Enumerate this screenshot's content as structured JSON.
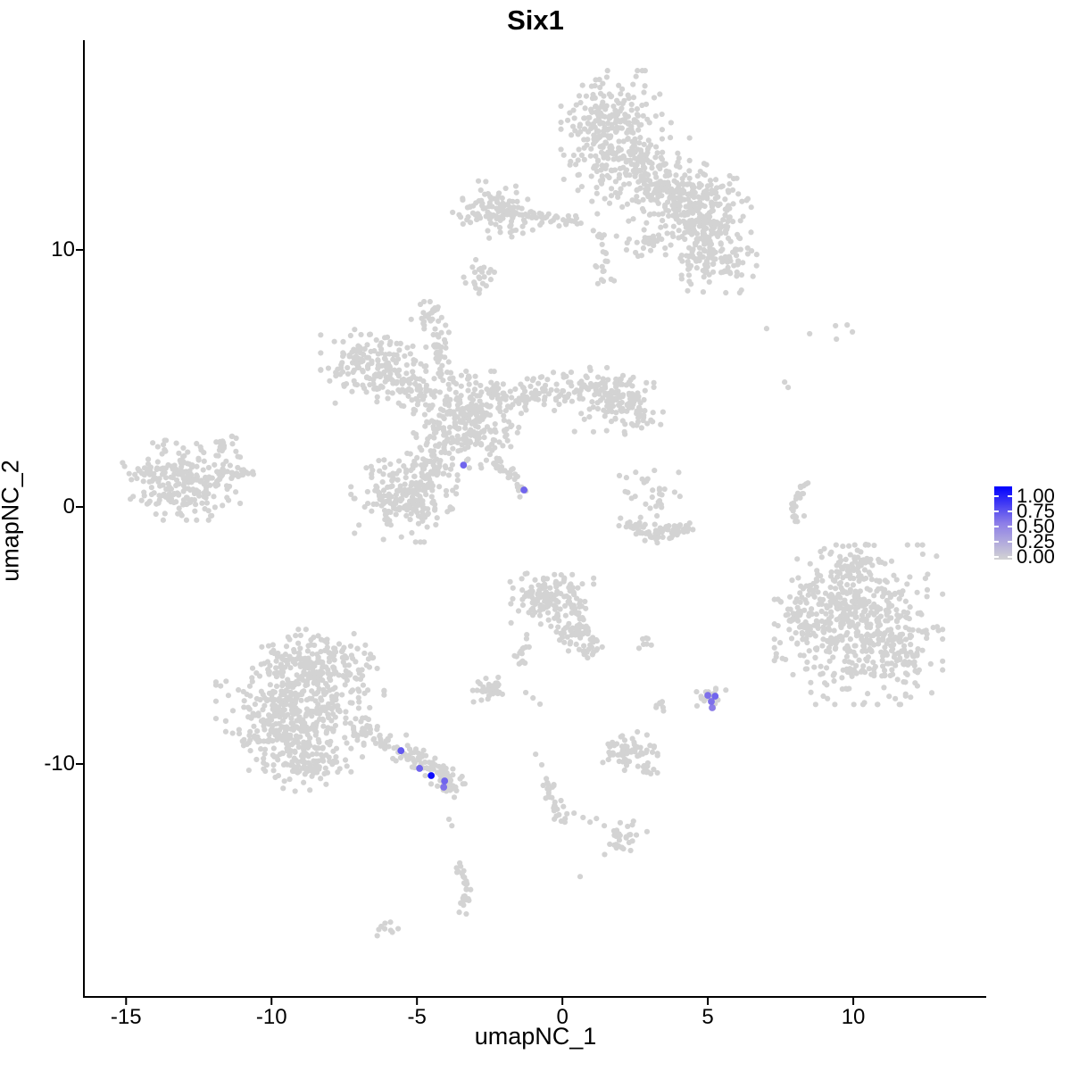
{
  "chart_data": {
    "type": "scatter",
    "title": "Six1",
    "xlabel": "umapNC_1",
    "ylabel": "umapNC_2",
    "xlim": [
      -16.42,
      14.57
    ],
    "ylim": [
      -19.06,
      18.16
    ],
    "grid": "off",
    "x_tick_labels": [
      "-15",
      "-10",
      "-5",
      "0",
      "5",
      "10"
    ],
    "x_tick_values": [
      -15,
      -10,
      -5,
      0,
      5,
      10
    ],
    "y_tick_labels": [
      "10",
      "0",
      "-10"
    ],
    "y_tick_values": [
      10,
      0,
      -10
    ],
    "point_color_low": "#D3D3D3",
    "point_color_mid": "#8C7DE8",
    "point_color_high": "#0000FF",
    "legend": {
      "labels": [
        "1.00",
        "0.75",
        "0.50",
        "0.25",
        "0.00"
      ],
      "high": "#0000FF",
      "mid": "#8C7DE8",
      "low": "#D3D3D3"
    },
    "background_clusters": [
      {
        "kind": "blob",
        "n": 230,
        "x": 1.69,
        "y": 14.86,
        "sx": 0.74,
        "sy": 0.9
      },
      {
        "kind": "blob",
        "n": 170,
        "x": 2.21,
        "y": 13.19,
        "sx": 0.92,
        "sy": 0.76
      },
      {
        "kind": "blob",
        "n": 60,
        "x": 3.53,
        "y": 12.53,
        "sx": 0.46,
        "sy": 0.49
      },
      {
        "kind": "blob",
        "n": 190,
        "x": 4.66,
        "y": 11.81,
        "sx": 0.83,
        "sy": 0.66
      },
      {
        "kind": "blob",
        "n": 130,
        "x": 5.21,
        "y": 9.72,
        "sx": 0.67,
        "sy": 0.59
      },
      {
        "kind": "blob",
        "n": 50,
        "x": 4.91,
        "y": 10.76,
        "sx": 0.43,
        "sy": 0.42
      },
      {
        "kind": "blob",
        "n": 110,
        "x": -2.27,
        "y": 11.53,
        "sx": 0.64,
        "sy": 0.49
      },
      {
        "kind": "line",
        "n": 40,
        "x1": -1.6,
        "y1": 11.35,
        "x2": 0.67,
        "y2": 11.18,
        "j": 0.13
      },
      {
        "kind": "line",
        "n": 22,
        "x1": 1.29,
        "y1": 10.87,
        "x2": 1.53,
        "y2": 8.61,
        "j": 0.16
      },
      {
        "kind": "blob",
        "n": 35,
        "x": 3.01,
        "y": 10.35,
        "sx": 0.49,
        "sy": 0.42
      },
      {
        "kind": "blob",
        "n": 24,
        "x": -2.82,
        "y": 8.89,
        "sx": 0.25,
        "sy": 0.31
      },
      {
        "kind": "blob",
        "n": 30,
        "x": -4.54,
        "y": 7.5,
        "sx": 0.28,
        "sy": 0.38
      },
      {
        "kind": "line",
        "n": 12,
        "x1": -4.23,
        "y1": 6.81,
        "x2": -4.05,
        "y2": 5.66,
        "j": 0.1
      },
      {
        "kind": "blob",
        "n": 160,
        "x": -6.5,
        "y": 5.59,
        "sx": 0.77,
        "sy": 0.66
      },
      {
        "kind": "blob",
        "n": 55,
        "x": -5.15,
        "y": 4.58,
        "sx": 0.4,
        "sy": 0.42
      },
      {
        "kind": "blob",
        "n": 270,
        "x": -3.31,
        "y": 3.4,
        "sx": 0.77,
        "sy": 0.8
      },
      {
        "kind": "line",
        "n": 110,
        "x1": -2.52,
        "y1": 4.03,
        "x2": 0.77,
        "y2": 4.69,
        "j": 0.36
      },
      {
        "kind": "blob",
        "n": 130,
        "x": 1.78,
        "y": 4.24,
        "sx": 0.58,
        "sy": 0.56
      },
      {
        "kind": "blob",
        "n": 30,
        "x": 2.73,
        "y": 3.65,
        "sx": 0.31,
        "sy": 0.35
      },
      {
        "kind": "line",
        "n": 26,
        "x1": -3.96,
        "y1": 4.72,
        "x2": -4.33,
        "y2": 6.46,
        "j": 0.16
      },
      {
        "kind": "blob",
        "n": 210,
        "x": -5.46,
        "y": 0.35,
        "sx": 0.77,
        "sy": 0.73
      },
      {
        "kind": "blob",
        "n": 60,
        "x": -4.54,
        "y": 1.74,
        "sx": 0.43,
        "sy": 0.45
      },
      {
        "kind": "line",
        "n": 32,
        "x1": -2.48,
        "y1": 1.91,
        "x2": -1.23,
        "y2": 0.59,
        "j": 0.11
      },
      {
        "kind": "blob",
        "n": 240,
        "x": -13.1,
        "y": 1.04,
        "sx": 0.86,
        "sy": 0.66
      },
      {
        "kind": "line",
        "n": 28,
        "x1": -11.96,
        "y1": 1.28,
        "x2": -10.61,
        "y2": 1.39,
        "j": 0.16
      },
      {
        "kind": "line",
        "n": 13,
        "x1": -11.9,
        "y1": 2.26,
        "x2": -11.29,
        "y2": 2.74,
        "j": 0.1
      },
      {
        "kind": "line",
        "n": 40,
        "x1": 2.21,
        "y1": -0.66,
        "x2": 3.37,
        "y2": -1.15,
        "j": 0.16
      },
      {
        "kind": "line",
        "n": 35,
        "x1": 3.37,
        "y1": -1.15,
        "x2": 4.42,
        "y2": -0.87,
        "j": 0.16
      },
      {
        "kind": "blob",
        "n": 30,
        "x": 3.1,
        "y": 0.42,
        "sx": 0.4,
        "sy": 0.45
      },
      {
        "kind": "points",
        "pts": [
          [
            2.52,
            1.35
          ],
          [
            2.82,
            0.97
          ],
          [
            1.96,
            1.22
          ]
        ]
      },
      {
        "kind": "line",
        "n": 14,
        "x1": 8.4,
        "y1": 1.01,
        "x2": 7.94,
        "y2": 0.1,
        "j": 0.08
      },
      {
        "kind": "line",
        "n": 10,
        "x1": 7.94,
        "y1": 0.1,
        "x2": 8.01,
        "y2": -0.59,
        "j": 0.08
      },
      {
        "kind": "points",
        "pts": [
          [
            8.25,
            0.52
          ],
          [
            8.31,
            -0.35
          ]
        ]
      },
      {
        "kind": "points",
        "pts": [
          [
            7.02,
            6.94
          ],
          [
            8.5,
            6.74
          ],
          [
            9.39,
            7.05
          ],
          [
            9.79,
            7.08
          ],
          [
            9.97,
            6.81
          ],
          [
            9.42,
            6.53
          ],
          [
            7.64,
            4.86
          ],
          [
            7.76,
            4.65
          ]
        ]
      },
      {
        "kind": "blob",
        "n": 420,
        "x": 10.18,
        "y": -4.58,
        "sx": 1.23,
        "sy": 1.32
      },
      {
        "kind": "blob",
        "n": 90,
        "x": 9.36,
        "y": -3.19,
        "sx": 0.74,
        "sy": 0.69
      },
      {
        "kind": "blob",
        "n": 90,
        "x": 11.35,
        "y": -5.63,
        "sx": 0.74,
        "sy": 0.76
      },
      {
        "kind": "blob",
        "n": 35,
        "x": 8.07,
        "y": -4.65,
        "sx": 0.28,
        "sy": 0.45
      },
      {
        "kind": "blob",
        "n": 30,
        "x": 10.06,
        "y": -2.15,
        "sx": 0.37,
        "sy": 0.35
      },
      {
        "kind": "blob",
        "n": 190,
        "x": -8.59,
        "y": -6.15,
        "sx": 1.04,
        "sy": 0.59
      },
      {
        "kind": "blob",
        "n": 250,
        "x": -9.02,
        "y": -7.57,
        "sx": 1.23,
        "sy": 0.69
      },
      {
        "kind": "blob",
        "n": 190,
        "x": -9.2,
        "y": -8.89,
        "sx": 1.01,
        "sy": 0.59
      },
      {
        "kind": "blob",
        "n": 80,
        "x": -8.77,
        "y": -10.07,
        "sx": 0.64,
        "sy": 0.42
      },
      {
        "kind": "line",
        "n": 45,
        "x1": -7.12,
        "y1": -8.4,
        "x2": -5.46,
        "y2": -9.55,
        "j": 0.22
      },
      {
        "kind": "line",
        "n": 55,
        "x1": -5.46,
        "y1": -9.55,
        "x2": -3.93,
        "y2": -10.56,
        "j": 0.19
      },
      {
        "kind": "blob",
        "n": 30,
        "x": -3.9,
        "y": -10.73,
        "sx": 0.25,
        "sy": 0.24
      },
      {
        "kind": "points",
        "pts": [
          [
            -3.9,
            -12.15
          ],
          [
            -3.8,
            -12.4
          ]
        ]
      },
      {
        "kind": "blob",
        "n": 25,
        "x": 5.06,
        "y": -7.33,
        "sx": 0.25,
        "sy": 0.21
      },
      {
        "kind": "blob",
        "n": 150,
        "x": -0.43,
        "y": -3.54,
        "sx": 0.64,
        "sy": 0.59
      },
      {
        "kind": "blob",
        "n": 50,
        "x": 0.52,
        "y": -4.83,
        "sx": 0.4,
        "sy": 0.38
      },
      {
        "kind": "blob",
        "n": 16,
        "x": 0.98,
        "y": -5.59,
        "sx": 0.21,
        "sy": 0.24
      },
      {
        "kind": "line",
        "n": 16,
        "x1": -1.17,
        "y1": -5.07,
        "x2": -1.6,
        "y2": -6.22,
        "j": 0.1
      },
      {
        "kind": "blob",
        "n": 40,
        "x": -2.42,
        "y": -7.05,
        "sx": 0.34,
        "sy": 0.24
      },
      {
        "kind": "points",
        "pts": [
          [
            -1.26,
            -7.22
          ],
          [
            -1.01,
            -7.43
          ],
          [
            -0.77,
            -7.67
          ]
        ]
      },
      {
        "kind": "blob",
        "n": 7,
        "x": 2.82,
        "y": -5.24,
        "sx": 0.15,
        "sy": 0.14
      },
      {
        "kind": "blob",
        "n": 7,
        "x": 3.37,
        "y": -7.78,
        "sx": 0.18,
        "sy": 0.17
      },
      {
        "kind": "blob",
        "n": 60,
        "x": 2.33,
        "y": -9.48,
        "sx": 0.4,
        "sy": 0.35
      },
      {
        "kind": "line",
        "n": 12,
        "x1": 2.64,
        "y1": -10.03,
        "x2": 3.16,
        "y2": -10.35,
        "j": 0.1
      },
      {
        "kind": "line",
        "n": 30,
        "x1": -0.58,
        "y1": -10.52,
        "x2": -0.03,
        "y2": -12.36,
        "j": 0.13
      },
      {
        "kind": "points",
        "pts": [
          [
            -0.92,
            -9.62
          ],
          [
            -0.71,
            -10.03
          ]
        ]
      },
      {
        "kind": "points",
        "pts": [
          [
            0.4,
            -11.91
          ],
          [
            0.71,
            -12.08
          ],
          [
            0.95,
            -12.26
          ],
          [
            1.17,
            -12.12
          ],
          [
            1.44,
            -12.4
          ]
        ]
      },
      {
        "kind": "blob",
        "n": 30,
        "x": 2.18,
        "y": -12.88,
        "sx": 0.31,
        "sy": 0.28
      },
      {
        "kind": "line",
        "n": 14,
        "x1": -3.59,
        "y1": -13.92,
        "x2": -3.25,
        "y2": -14.76,
        "j": 0.1
      },
      {
        "kind": "line",
        "n": 14,
        "x1": -3.25,
        "y1": -14.76,
        "x2": -3.47,
        "y2": -15.69,
        "j": 0.1
      },
      {
        "kind": "blob",
        "n": 9,
        "x": -6.07,
        "y": -16.28,
        "sx": 0.18,
        "sy": 0.17
      },
      {
        "kind": "points",
        "pts": [
          [
            0.61,
            -14.38
          ]
        ]
      }
    ],
    "expressing_cells": [
      {
        "x": -3.4,
        "y": 1.63,
        "v": 0.6
      },
      {
        "x": -1.32,
        "y": 0.66,
        "v": 0.6
      },
      {
        "x": -5.55,
        "y": -9.48,
        "v": 0.65
      },
      {
        "x": -4.91,
        "y": -10.17,
        "v": 0.6
      },
      {
        "x": -4.51,
        "y": -10.45,
        "v": 0.95
      },
      {
        "x": -4.05,
        "y": -10.66,
        "v": 0.6
      },
      {
        "x": -4.08,
        "y": -10.9,
        "v": 0.55
      },
      {
        "x": 5.0,
        "y": -7.33,
        "v": 0.55
      },
      {
        "x": 5.25,
        "y": -7.36,
        "v": 0.6
      },
      {
        "x": 5.12,
        "y": -7.57,
        "v": 0.55
      },
      {
        "x": 5.15,
        "y": -7.81,
        "v": 0.5
      }
    ]
  }
}
